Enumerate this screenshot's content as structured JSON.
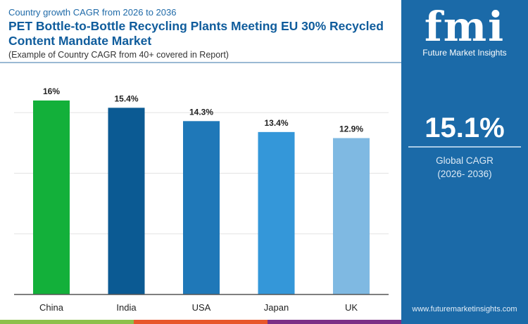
{
  "header": {
    "subtitle": "Country growth CAGR from 2026 to 2036",
    "title": "PET Bottle-to-Bottle Recycling Plants Meeting EU 30% Recycled Content Mandate Market",
    "note": "(Example of Country CAGR from 40+ covered in Report)"
  },
  "panel": {
    "logo_text": "fmi",
    "brand": "Future Market Insights",
    "kpi_value": "15.1%",
    "kpi_label": "Global CAGR",
    "kpi_period": "(2026- 2036)",
    "url": "www.futuremarketinsights.com",
    "color": "#1b6aa8"
  },
  "chart_data": {
    "type": "bar",
    "categories": [
      "China",
      "India",
      "USA",
      "Japan",
      "UK"
    ],
    "values": [
      16,
      15.4,
      14.3,
      13.4,
      12.9
    ],
    "data_labels": [
      "16%",
      "15.4%",
      "14.3%",
      "13.4%",
      "12.9%"
    ],
    "colors": [
      "#13b03a",
      "#0b5a93",
      "#1f78b8",
      "#3497d9",
      "#7fb9e2"
    ],
    "ylim": [
      0,
      18
    ],
    "grid": true,
    "title": "",
    "xlabel": "",
    "ylabel": ""
  },
  "footer_strip_colors": [
    "#8cc04b",
    "#e8572b",
    "#7b2f86"
  ]
}
